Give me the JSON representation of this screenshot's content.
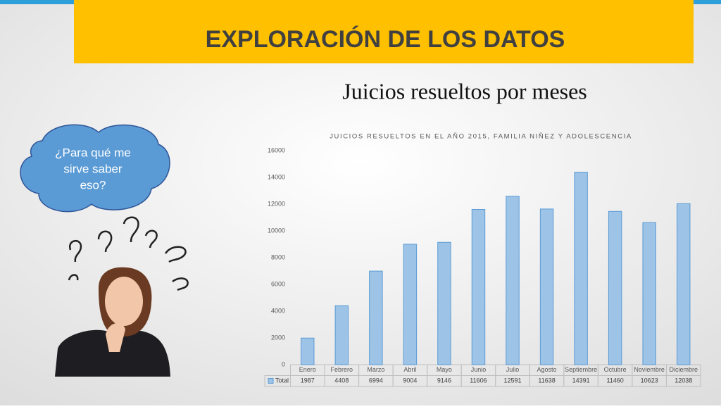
{
  "header": {
    "title": "EXPLORACIÓN DE LOS DATOS",
    "subtitle": "Juicios resueltos por meses"
  },
  "cloud": {
    "lines": [
      "¿Para qué me",
      "sirve saber",
      "eso?"
    ]
  },
  "chart_data": {
    "type": "bar",
    "title": "JUICIOS RESUELTOS EN EL AÑO 2015, FAMILIA NIÑEZ Y ADOLESCENCIA",
    "categories": [
      "Enero",
      "Febrero",
      "Marzo",
      "Abril",
      "Mayo",
      "Junio",
      "Julio",
      "Agosto",
      "Septiembre",
      "Octubre",
      "Noviembre",
      "Diciembre"
    ],
    "series": [
      {
        "name": "Total",
        "color": "#9dc3e6",
        "values": [
          1987,
          4408,
          6994,
          9004,
          9146,
          11606,
          12591,
          11638,
          14391,
          11460,
          10623,
          12038
        ]
      }
    ],
    "ylim": [
      0,
      16000
    ],
    "yticks": [
      0,
      2000,
      4000,
      6000,
      8000,
      10000,
      12000,
      14000,
      16000
    ],
    "grid": false,
    "data_table": true
  }
}
